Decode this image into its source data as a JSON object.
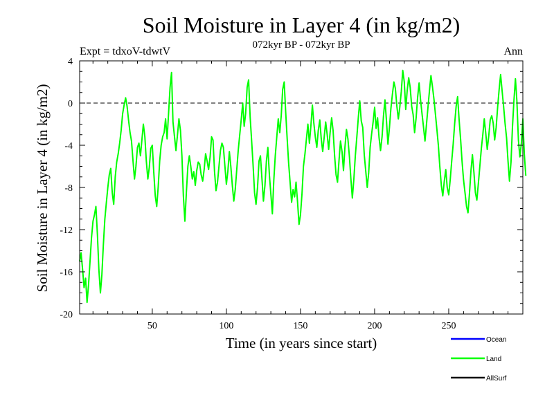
{
  "chart_data": {
    "type": "line",
    "title": "Soil Moisture in Layer 4 (in kg/m2)",
    "subtitle": "072kyr BP - 072kyr BP",
    "experiment_label": "Expt = tdxoV-tdwtV",
    "season_label": "Ann",
    "xlabel": "Time (in years since start)",
    "ylabel": "Soil Moisture in Layer 4 (in kg/m2)",
    "xlim": [
      1,
      300
    ],
    "ylim": [
      -20,
      4
    ],
    "x_ticks": [
      50,
      100,
      150,
      200,
      250
    ],
    "y_ticks": [
      4,
      0,
      -4,
      -8,
      -12,
      -16,
      -20
    ],
    "zero_reference_line": 0,
    "legend_position": "bottom-right",
    "legend": [
      {
        "name": "Ocean",
        "color": "#0000ff"
      },
      {
        "name": "Land",
        "color": "#00ff00"
      },
      {
        "name": "AllSurf",
        "color": "#000000"
      }
    ],
    "series": [
      {
        "name": "Land",
        "color": "#00ff00",
        "x_start": 1,
        "x_step": 1,
        "values": [
          -15.0,
          -14.2,
          -15.8,
          -17.5,
          -16.6,
          -18.9,
          -17.3,
          -15.0,
          -12.8,
          -11.2,
          -10.6,
          -9.8,
          -12.5,
          -15.8,
          -18.0,
          -16.3,
          -13.5,
          -11.0,
          -9.5,
          -8.0,
          -6.8,
          -6.2,
          -8.5,
          -9.6,
          -7.0,
          -5.6,
          -4.8,
          -3.8,
          -2.6,
          -1.0,
          -0.2,
          0.5,
          -0.3,
          -1.6,
          -2.8,
          -3.6,
          -5.5,
          -7.2,
          -6.0,
          -4.2,
          -3.8,
          -5.0,
          -3.5,
          -2.0,
          -3.2,
          -5.5,
          -7.2,
          -6.1,
          -4.3,
          -4.0,
          -6.5,
          -8.8,
          -9.8,
          -8.0,
          -5.5,
          -4.0,
          -3.2,
          -2.8,
          -1.5,
          -3.4,
          -1.0,
          1.5,
          2.9,
          -1.8,
          -3.2,
          -4.5,
          -3.0,
          -1.5,
          -2.6,
          -5.0,
          -8.8,
          -11.2,
          -8.5,
          -6.0,
          -5.0,
          -6.0,
          -7.2,
          -6.5,
          -7.8,
          -6.4,
          -5.6,
          -5.8,
          -6.8,
          -7.4,
          -6.3,
          -4.8,
          -5.5,
          -6.3,
          -5.1,
          -3.2,
          -3.5,
          -6.5,
          -8.3,
          -7.5,
          -6.0,
          -4.5,
          -3.8,
          -4.2,
          -6.0,
          -7.7,
          -6.5,
          -4.6,
          -6.0,
          -7.8,
          -9.3,
          -8.2,
          -6.3,
          -4.5,
          -3.0,
          -1.6,
          0.0,
          -2.2,
          -1.0,
          1.5,
          2.2,
          -1.3,
          -3.5,
          -5.8,
          -8.5,
          -9.6,
          -8.0,
          -5.5,
          -5.0,
          -7.2,
          -9.3,
          -7.8,
          -5.5,
          -4.2,
          -6.8,
          -8.6,
          -10.5,
          -7.3,
          -5.0,
          -3.2,
          -1.5,
          -2.8,
          -1.2,
          1.3,
          2.0,
          -0.8,
          -3.4,
          -5.7,
          -7.5,
          -9.4,
          -8.2,
          -8.9,
          -7.5,
          -9.3,
          -11.5,
          -10.6,
          -8.6,
          -6.0,
          -4.8,
          -3.4,
          -2.0,
          -3.8,
          -2.2,
          -0.2,
          -1.9,
          -3.2,
          -4.2,
          -2.6,
          -1.6,
          -3.4,
          -4.6,
          -3.2,
          -1.8,
          -3.0,
          -4.4,
          -2.8,
          -1.4,
          -2.6,
          -5.0,
          -6.8,
          -7.5,
          -5.4,
          -3.6,
          -4.6,
          -6.4,
          -4.2,
          -2.5,
          -3.4,
          -5.1,
          -7.2,
          -9.0,
          -7.2,
          -5.0,
          -3.2,
          -1.4,
          0.2,
          -1.7,
          -2.3,
          -4.9,
          -6.4,
          -8.0,
          -6.6,
          -4.2,
          -2.9,
          -1.8,
          -0.4,
          -2.4,
          -1.4,
          -3.3,
          -4.5,
          -3.2,
          -1.2,
          0.3,
          -1.7,
          -3.9,
          -2.3,
          -0.5,
          0.8,
          2.0,
          1.4,
          -0.3,
          -1.5,
          -0.4,
          1.1,
          3.1,
          2.0,
          -0.6,
          1.2,
          2.4,
          1.5,
          -0.3,
          -1.1,
          -2.8,
          -1.4,
          0.5,
          1.9,
          0.3,
          -1.0,
          -2.3,
          -3.6,
          -2.0,
          -0.4,
          1.2,
          2.6,
          1.6,
          0.4,
          -1.0,
          -2.5,
          -4.0,
          -6.0,
          -7.8,
          -8.8,
          -7.4,
          -6.3,
          -8.0,
          -8.7,
          -7.3,
          -5.5,
          -3.9,
          -2.0,
          -0.3,
          0.6,
          -1.6,
          -3.4,
          -5.5,
          -7.3,
          -8.5,
          -9.8,
          -10.4,
          -8.6,
          -6.4,
          -4.9,
          -6.6,
          -8.5,
          -9.2,
          -7.6,
          -6.0,
          -4.3,
          -3.0,
          -1.5,
          -2.9,
          -4.4,
          -3.1,
          -1.6,
          -1.2,
          -1.9,
          -3.5,
          -2.3,
          -0.4,
          1.3,
          2.7,
          1.2,
          -0.3,
          -1.9,
          -3.3,
          -5.5,
          -7.4,
          -5.6,
          -2.3,
          0.3,
          2.3,
          0.2,
          -3.5,
          -5.1,
          -3.8,
          -1.5,
          -4.8,
          -6.9
        ]
      }
    ]
  }
}
